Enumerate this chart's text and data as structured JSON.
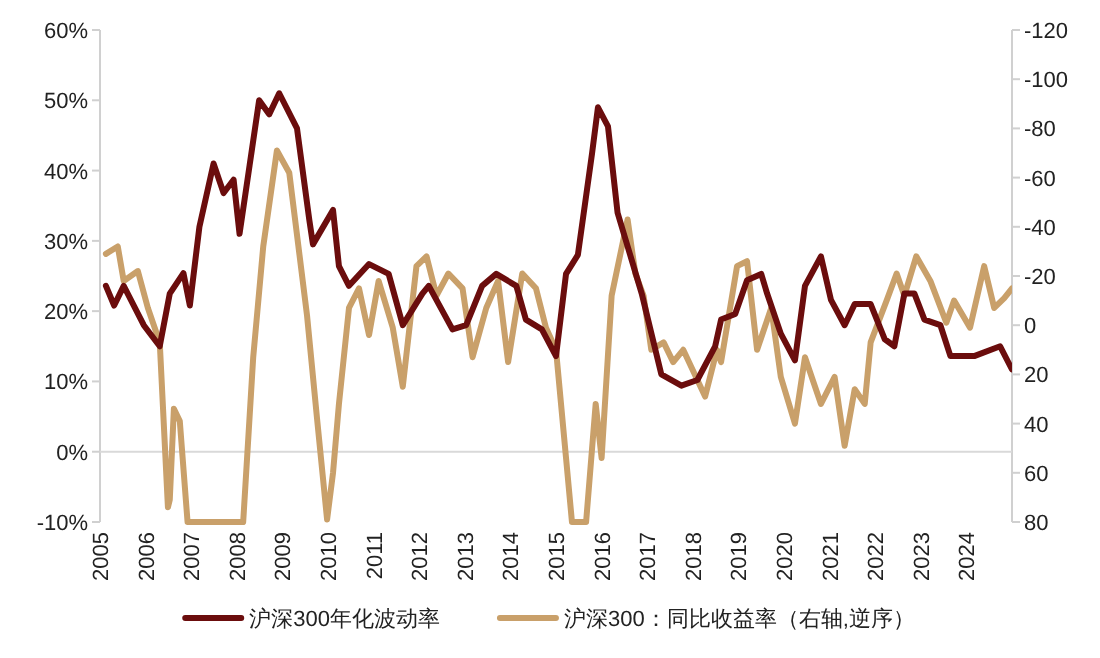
{
  "chart_data": {
    "type": "line",
    "xlim": [
      2005,
      2025
    ],
    "xticks": [
      2005,
      2006,
      2007,
      2008,
      2009,
      2010,
      2011,
      2012,
      2013,
      2014,
      2015,
      2016,
      2017,
      2018,
      2019,
      2020,
      2021,
      2022,
      2023,
      2024
    ],
    "ylim": [
      -10,
      60
    ],
    "yticks": [
      {
        "value": -10,
        "label": "-10%"
      },
      {
        "value": 0,
        "label": "0%"
      },
      {
        "value": 10,
        "label": "10%"
      },
      {
        "value": 20,
        "label": "20%"
      },
      {
        "value": 30,
        "label": "30%"
      },
      {
        "value": 40,
        "label": "40%"
      },
      {
        "value": 50,
        "label": "50%"
      },
      {
        "value": 60,
        "label": "60%"
      }
    ],
    "y2lim": [
      80,
      -120
    ],
    "y2ticks": [
      -120,
      -100,
      -80,
      -60,
      -40,
      -20,
      0,
      20,
      40,
      60,
      80
    ],
    "ref_lines": [
      {
        "axis": "y",
        "value": 0,
        "color": "#d9d9d9"
      }
    ],
    "legend": "bottom",
    "grid": false,
    "series": [
      {
        "name": "沪深300年化波动率",
        "color": "#6b0d0d",
        "x": [
          2005.13,
          2005.31,
          2005.52,
          2005.96,
          2006.31,
          2006.53,
          2006.83,
          2006.97,
          2007.18,
          2007.49,
          2007.71,
          2007.93,
          2008.06,
          2008.28,
          2008.49,
          2008.71,
          2008.93,
          2009.32,
          2009.59,
          2009.67,
          2010.11,
          2010.24,
          2010.46,
          2010.9,
          2011.33,
          2011.64,
          2012.07,
          2012.21,
          2012.73,
          2013.03,
          2013.38,
          2013.69,
          2014.13,
          2014.34,
          2014.69,
          2015.0,
          2015.22,
          2015.48,
          2015.79,
          2015.92,
          2016.14,
          2016.35,
          2016.88,
          2017.31,
          2017.75,
          2018.1,
          2018.49,
          2018.62,
          2018.93,
          2019.19,
          2019.5,
          2019.63,
          2019.93,
          2020.24,
          2020.46,
          2020.81,
          2021.03,
          2021.33,
          2021.55,
          2021.9,
          2022.21,
          2022.42,
          2022.64,
          2022.86,
          2023.08,
          2023.43,
          2023.65,
          2024.17,
          2024.74,
          2025.0
        ],
        "values": [
          23.6,
          20.8,
          23.6,
          18,
          15,
          22.5,
          25.4,
          20.8,
          32,
          41,
          36.8,
          38.7,
          31,
          40.7,
          50,
          48,
          51,
          46,
          33,
          29.5,
          34.4,
          26.4,
          23.6,
          26.7,
          25.3,
          18,
          22.5,
          23.6,
          17.4,
          18,
          23.6,
          25.3,
          23.6,
          18.8,
          17.4,
          13.6,
          25.3,
          28,
          42.4,
          49,
          46.3,
          34,
          22.5,
          11,
          9.4,
          10.2,
          15,
          18.8,
          19.6,
          24.4,
          25.3,
          22.5,
          16.8,
          13,
          23.6,
          27.8,
          21.6,
          18,
          21,
          21,
          16,
          15,
          22.5,
          22.5,
          18.8,
          18,
          13.6,
          13.6,
          15,
          11.7
        ]
      },
      {
        "name": "沪深300：同比收益率（右轴,逆序）",
        "color": "#c9a06a",
        "axis": "y2",
        "x": [
          2005.13,
          2005.39,
          2005.52,
          2005.83,
          2006.05,
          2006.31,
          2006.49,
          2006.53,
          2006.62,
          2006.75,
          2006.92,
          2008.14,
          2008.36,
          2008.58,
          2008.88,
          2009.15,
          2009.54,
          2009.76,
          2009.98,
          2010.11,
          2010.24,
          2010.46,
          2010.68,
          2010.9,
          2011.11,
          2011.42,
          2011.64,
          2011.94,
          2012.16,
          2012.38,
          2012.64,
          2012.95,
          2013.17,
          2013.47,
          2013.73,
          2013.95,
          2014.26,
          2014.56,
          2014.78,
          2015.0,
          2015.22,
          2015.35,
          2015.66,
          2015.87,
          2016.0,
          2016.22,
          2016.57,
          2016.74,
          2016.92,
          2017.09,
          2017.36,
          2017.57,
          2017.79,
          2018.27,
          2018.53,
          2018.62,
          2018.97,
          2019.19,
          2019.41,
          2019.72,
          2019.93,
          2020.24,
          2020.46,
          2020.81,
          2021.11,
          2021.33,
          2021.55,
          2021.77,
          2021.9,
          2022.25,
          2022.47,
          2022.64,
          2022.9,
          2023.21,
          2023.56,
          2023.73,
          2024.08,
          2024.39,
          2024.61,
          2024.83,
          2025.0
        ],
        "values": [
          -29,
          -32,
          -18,
          -22,
          -7,
          7,
          74,
          71,
          34,
          39,
          80,
          80,
          13,
          -32,
          -71,
          -62,
          -4,
          38,
          79,
          60,
          32,
          -7,
          -15,
          4,
          -18,
          1,
          25,
          -24,
          -28,
          -12,
          -21,
          -15,
          13,
          -7,
          -18,
          15,
          -21,
          -15,
          1,
          10,
          54,
          80,
          80,
          32,
          54,
          -12,
          -43,
          -21,
          -12,
          10,
          7,
          15,
          10,
          29,
          10,
          15,
          -24,
          -26,
          10,
          -7,
          21,
          40,
          13,
          32,
          21,
          49,
          26,
          32,
          7,
          -10,
          -21,
          -12,
          -28,
          -18,
          -1,
          -10,
          1,
          -24,
          -7,
          -11,
          -15
        ]
      }
    ]
  }
}
